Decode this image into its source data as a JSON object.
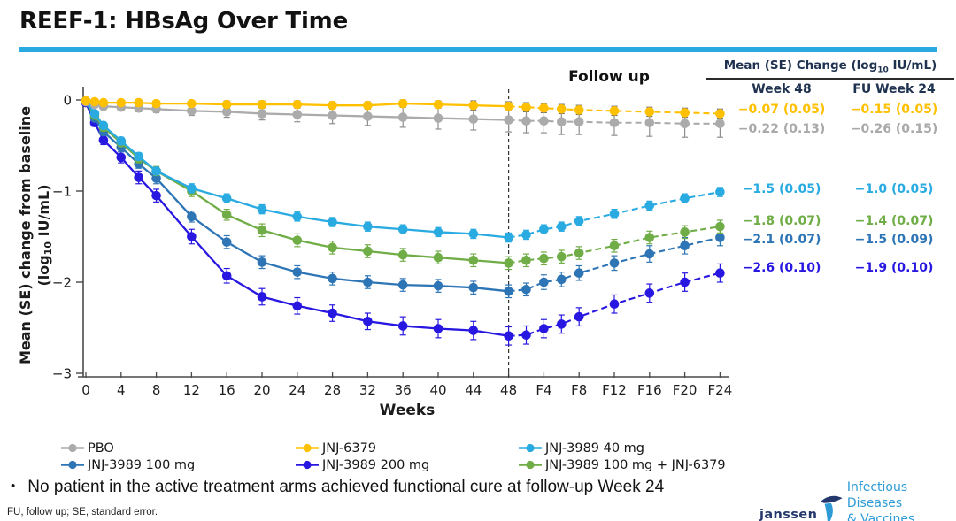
{
  "slide": {
    "title": "REEF-1: HBsAg Over Time",
    "accent_color": "#29ABE2",
    "bullet_marker": "•",
    "bullet": "No patient in the active treatment arms achieved functional cure at follow-up Week 24",
    "footnote": "FU, follow up; SE, standard error.",
    "logo": {
      "wordmark": "janssen",
      "division_line1": "Infectious Diseases",
      "division_line2": "& Vaccines",
      "wordmark_color": "#25386E",
      "division_color": "#2E9BD6"
    }
  },
  "summary_table": {
    "header": {
      "prefix": "Mean (SE) Change (log",
      "sub": "10",
      "suffix": " IU/mL)"
    },
    "columns": [
      "Week 48",
      "FU Week 24"
    ],
    "rows": [
      {
        "series": "JNJ-6379",
        "color": "#FFC000",
        "week48": "−0.07 (0.05)",
        "fu_week24": "−0.15 (0.05)"
      },
      {
        "series": "PBO",
        "color": "#A9A9A9",
        "week48": "−0.22 (0.13)",
        "fu_week24": "−0.26 (0.15)"
      },
      {
        "series": "JNJ-3989 40 mg",
        "color": "#29ABE2",
        "week48": "−1.5 (0.05)",
        "fu_week24": "−1.0 (0.05)"
      },
      {
        "series": "JNJ-3989 100 mg + JNJ-6379",
        "color": "#70AD47",
        "week48": "−1.8 (0.07)",
        "fu_week24": "−1.4 (0.07)"
      },
      {
        "series": "JNJ-3989 100 mg",
        "color": "#2E75B6",
        "week48": "−2.1 (0.07)",
        "fu_week24": "−1.5 (0.09)"
      },
      {
        "series": "JNJ-3989 200 mg",
        "color": "#2817E0",
        "week48": "−2.6 (0.10)",
        "fu_week24": "−1.9 (0.10)"
      }
    ]
  },
  "legend": {
    "rows": [
      [
        {
          "label": "PBO",
          "color": "#ABABAB"
        },
        {
          "label": "JNJ-6379",
          "color": "#FFC000"
        },
        {
          "label": "JNJ-3989 40 mg",
          "color": "#29ABE2"
        }
      ],
      [
        {
          "label": "JNJ-3989 100 mg",
          "color": "#2E75B6"
        },
        {
          "label": "JNJ-3989 200 mg",
          "color": "#2817E0"
        },
        {
          "label": "JNJ-3989 100 mg + JNJ-6379",
          "color": "#70AD47"
        }
      ]
    ]
  },
  "chart_data": {
    "type": "line",
    "xlabel": "Weeks",
    "ylabel_line1": "Mean (SE) change from baseline",
    "ylabel_line2_prefix": "(log",
    "ylabel_sub": "10",
    "ylabel_line2_suffix": " IU/mL)",
    "ylim": [
      -3,
      0
    ],
    "yticks": [
      0,
      -1,
      -2,
      -3
    ],
    "xticks": [
      {
        "label": "0",
        "week": 0
      },
      {
        "label": "4",
        "week": 4
      },
      {
        "label": "8",
        "week": 8
      },
      {
        "label": "12",
        "week": 12
      },
      {
        "label": "16",
        "week": 16
      },
      {
        "label": "20",
        "week": 20
      },
      {
        "label": "24",
        "week": 24
      },
      {
        "label": "28",
        "week": 28
      },
      {
        "label": "32",
        "week": 32
      },
      {
        "label": "36",
        "week": 36
      },
      {
        "label": "40",
        "week": 40
      },
      {
        "label": "44",
        "week": 44
      },
      {
        "label": "48",
        "week": 48
      },
      {
        "label": "F4",
        "week": 52
      },
      {
        "label": "F8",
        "week": 56
      },
      {
        "label": "F12",
        "week": 60
      },
      {
        "label": "F16",
        "week": 64
      },
      {
        "label": "F20",
        "week": 68
      },
      {
        "label": "F24",
        "week": 72
      }
    ],
    "followup_divider_week": 48,
    "followup_label": "Follow up",
    "treatment_weeks": [
      0,
      1,
      2,
      4,
      6,
      8,
      12,
      16,
      20,
      24,
      28,
      32,
      36,
      40,
      44,
      48
    ],
    "followup_weeks": [
      50,
      52,
      54,
      56,
      60,
      64,
      68,
      72
    ],
    "series": [
      {
        "name": "JNJ-3989 200 mg",
        "color": "#2817E0",
        "err_color": "#2817E0",
        "treatment": {
          "values": [
            -0.03,
            -0.25,
            -0.44,
            -0.63,
            -0.85,
            -1.05,
            -1.5,
            -1.93,
            -2.16,
            -2.26,
            -2.34,
            -2.43,
            -2.48,
            -2.51,
            -2.53,
            -2.59
          ],
          "se": [
            0.02,
            0.04,
            0.05,
            0.06,
            0.07,
            0.07,
            0.08,
            0.08,
            0.09,
            0.09,
            0.09,
            0.09,
            0.1,
            0.1,
            0.1,
            0.1
          ]
        },
        "followup": {
          "values": [
            -2.58,
            -2.51,
            -2.46,
            -2.38,
            -2.24,
            -2.12,
            -2.0,
            -1.9
          ],
          "se": [
            0.1,
            0.1,
            0.1,
            0.1,
            0.1,
            0.1,
            0.1,
            0.1
          ]
        }
      },
      {
        "name": "JNJ-3989 100 mg",
        "color": "#2E75B6",
        "err_color": "#2E75B6",
        "treatment": {
          "values": [
            -0.02,
            -0.2,
            -0.35,
            -0.52,
            -0.7,
            -0.86,
            -1.28,
            -1.56,
            -1.78,
            -1.89,
            -1.96,
            -2.0,
            -2.03,
            -2.04,
            -2.06,
            -2.1
          ],
          "se": [
            0.02,
            0.03,
            0.04,
            0.05,
            0.05,
            0.06,
            0.06,
            0.07,
            0.07,
            0.07,
            0.07,
            0.07,
            0.07,
            0.07,
            0.07,
            0.07
          ]
        },
        "followup": {
          "values": [
            -2.08,
            -2.0,
            -1.97,
            -1.9,
            -1.79,
            -1.69,
            -1.6,
            -1.51
          ],
          "se": [
            0.07,
            0.08,
            0.08,
            0.08,
            0.08,
            0.09,
            0.09,
            0.09
          ]
        }
      },
      {
        "name": "JNJ-3989 100 mg + JNJ-6379",
        "color": "#70AD47",
        "err_color": "#70AD47",
        "treatment": {
          "values": [
            -0.01,
            -0.17,
            -0.3,
            -0.47,
            -0.64,
            -0.78,
            -1.0,
            -1.26,
            -1.43,
            -1.54,
            -1.62,
            -1.66,
            -1.7,
            -1.73,
            -1.76,
            -1.79
          ],
          "se": [
            0.02,
            0.03,
            0.04,
            0.04,
            0.05,
            0.05,
            0.06,
            0.06,
            0.07,
            0.07,
            0.07,
            0.07,
            0.07,
            0.07,
            0.07,
            0.07
          ]
        },
        "followup": {
          "values": [
            -1.76,
            -1.74,
            -1.72,
            -1.68,
            -1.6,
            -1.51,
            -1.45,
            -1.39
          ],
          "se": [
            0.07,
            0.07,
            0.07,
            0.07,
            0.07,
            0.07,
            0.07,
            0.07
          ]
        }
      },
      {
        "name": "JNJ-3989 40 mg",
        "color": "#29ABE2",
        "err_color": "#29ABE2",
        "treatment": {
          "values": [
            -0.01,
            -0.15,
            -0.28,
            -0.45,
            -0.62,
            -0.78,
            -0.97,
            -1.08,
            -1.2,
            -1.28,
            -1.34,
            -1.39,
            -1.42,
            -1.45,
            -1.47,
            -1.51
          ],
          "se": [
            0.02,
            0.03,
            0.03,
            0.04,
            0.04,
            0.04,
            0.05,
            0.05,
            0.05,
            0.05,
            0.05,
            0.05,
            0.05,
            0.05,
            0.05,
            0.05
          ]
        },
        "followup": {
          "values": [
            -1.48,
            -1.42,
            -1.39,
            -1.33,
            -1.25,
            -1.16,
            -1.08,
            -1.01
          ],
          "se": [
            0.05,
            0.05,
            0.05,
            0.05,
            0.05,
            0.05,
            0.05,
            0.05
          ]
        }
      },
      {
        "name": "PBO",
        "color": "#ABABAB",
        "err_color": "#8F8F8F",
        "treatment": {
          "values": [
            -0.02,
            -0.05,
            -0.07,
            -0.08,
            -0.09,
            -0.1,
            -0.12,
            -0.13,
            -0.15,
            -0.16,
            -0.17,
            -0.18,
            -0.19,
            -0.2,
            -0.21,
            -0.22
          ],
          "se": [
            0.01,
            0.02,
            0.03,
            0.03,
            0.04,
            0.04,
            0.05,
            0.06,
            0.07,
            0.08,
            0.09,
            0.1,
            0.11,
            0.12,
            0.12,
            0.13
          ]
        },
        "followup": {
          "values": [
            -0.23,
            -0.23,
            -0.24,
            -0.24,
            -0.25,
            -0.25,
            -0.26,
            -0.26
          ],
          "se": [
            0.13,
            0.13,
            0.14,
            0.14,
            0.14,
            0.15,
            0.15,
            0.15
          ]
        }
      },
      {
        "name": "JNJ-6379",
        "color": "#FFC000",
        "err_color": "#6F6F6F",
        "treatment": {
          "values": [
            -0.01,
            -0.02,
            -0.03,
            -0.03,
            -0.03,
            -0.04,
            -0.04,
            -0.05,
            -0.05,
            -0.05,
            -0.06,
            -0.06,
            -0.04,
            -0.05,
            -0.06,
            -0.07
          ],
          "se": [
            0.02,
            0.02,
            0.02,
            0.03,
            0.03,
            0.03,
            0.03,
            0.04,
            0.04,
            0.04,
            0.04,
            0.04,
            0.04,
            0.04,
            0.05,
            0.05
          ]
        },
        "followup": {
          "values": [
            -0.08,
            -0.09,
            -0.1,
            -0.11,
            -0.12,
            -0.13,
            -0.14,
            -0.15
          ],
          "se": [
            0.05,
            0.05,
            0.05,
            0.05,
            0.05,
            0.05,
            0.05,
            0.05
          ]
        }
      }
    ]
  }
}
